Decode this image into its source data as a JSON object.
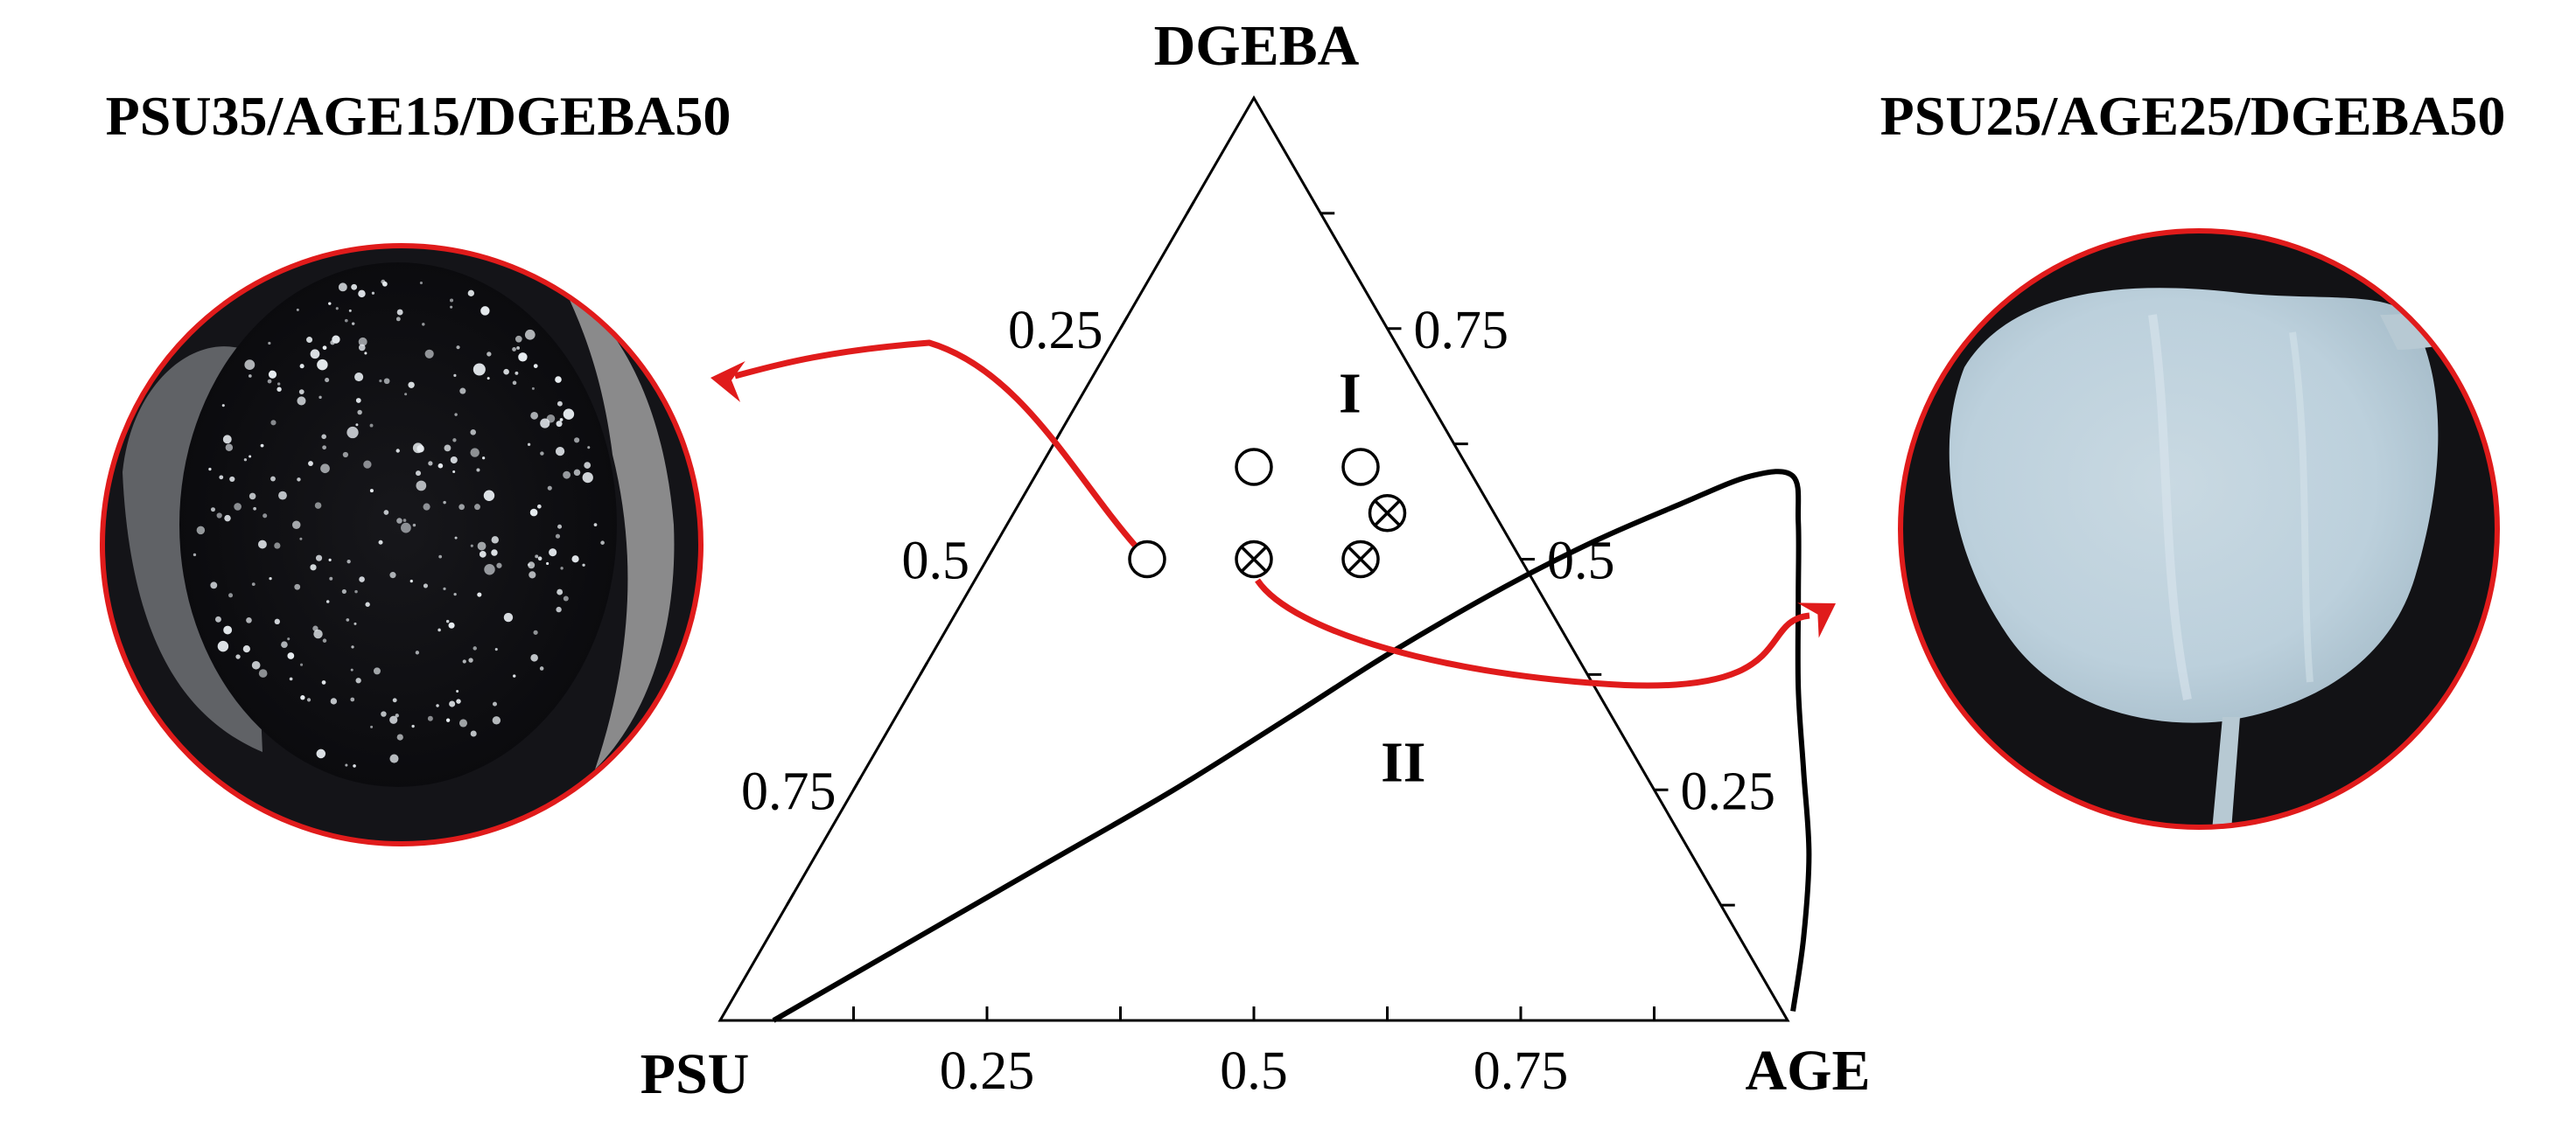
{
  "chart_data": {
    "type": "scatter",
    "subtype": "ternary",
    "title": "",
    "vertices": {
      "top": "DGEBA",
      "left": "PSU",
      "right": "AGE"
    },
    "tick_values": [
      0.25,
      0.5,
      0.75
    ],
    "tick_labels": [
      "0.25",
      "0.5",
      "0.75"
    ],
    "axis_range": [
      0,
      1
    ],
    "grid": false,
    "regions": [
      {
        "label": "I",
        "AGE": 0.25,
        "DGEBA": 0.68
      },
      {
        "label": "II",
        "AGE": 0.5,
        "DGEBA": 0.28
      }
    ],
    "series": [
      {
        "marker": "open-circle",
        "points": [
          {
            "PSU": 0.35,
            "AGE": 0.15,
            "DGEBA": 0.5
          },
          {
            "PSU": 0.2,
            "AGE": 0.2,
            "DGEBA": 0.6
          },
          {
            "PSU": 0.1,
            "AGE": 0.3,
            "DGEBA": 0.6
          }
        ]
      },
      {
        "marker": "crossed-circle",
        "points": [
          {
            "PSU": 0.25,
            "AGE": 0.25,
            "DGEBA": 0.5
          },
          {
            "PSU": 0.15,
            "AGE": 0.35,
            "DGEBA": 0.5
          },
          {
            "PSU": 0.1,
            "AGE": 0.35,
            "DGEBA": 0.55
          }
        ]
      }
    ],
    "binodal_curve": [
      [
        0.05,
        0.0
      ],
      [
        0.14,
        0.09
      ],
      [
        0.22,
        0.17
      ],
      [
        0.3,
        0.25
      ],
      [
        0.37,
        0.33
      ],
      [
        0.43,
        0.4
      ],
      [
        0.5,
        0.47
      ],
      [
        0.56,
        0.52
      ],
      [
        0.62,
        0.56
      ],
      [
        0.67,
        0.59
      ],
      [
        0.71,
        0.59
      ],
      [
        0.74,
        0.54
      ],
      [
        0.78,
        0.46
      ],
      [
        0.83,
        0.36
      ],
      [
        0.88,
        0.27
      ],
      [
        0.93,
        0.18
      ],
      [
        0.97,
        0.09
      ],
      [
        1.0,
        0.01
      ]
    ],
    "annotations": [
      {
        "text": "PSU35/AGE15/DGEBA50",
        "from": {
          "PSU": 0.35,
          "AGE": 0.15,
          "DGEBA": 0.5
        },
        "photo": "clear"
      },
      {
        "text": "PSU25/AGE25/DGEBA50",
        "from": {
          "PSU": 0.25,
          "AGE": 0.25,
          "DGEBA": 0.5
        },
        "photo": "opaque"
      }
    ]
  },
  "colors": {
    "arrow": "#e01b1b",
    "line": "#000000"
  }
}
